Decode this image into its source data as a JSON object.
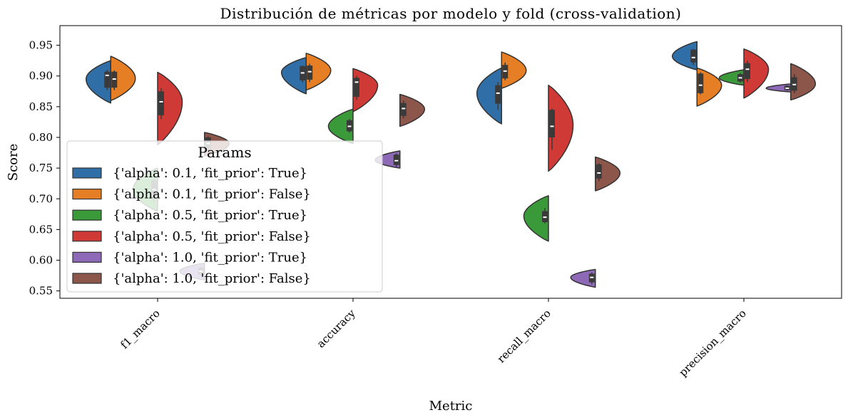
{
  "chart_data": {
    "type": "violin",
    "title": "Distribución de métricas por modelo y fold (cross-validation)",
    "xlabel": "Metric",
    "ylabel": "Score",
    "ylim": [
      0.538,
      0.982
    ],
    "yticks": [
      0.55,
      0.6,
      0.65,
      0.7,
      0.75,
      0.8,
      0.85,
      0.9,
      0.95
    ],
    "categories": [
      "f1_macro",
      "accuracy",
      "recall_macro",
      "precision_macro"
    ],
    "legend": {
      "title": "Params",
      "placement": "center-left"
    },
    "series": [
      {
        "name": "{'alpha': 0.1, 'fit_prior': True}",
        "color": "#2f6ea6",
        "split": "left",
        "group": 0,
        "stats": [
          {
            "min": 0.856,
            "max": 0.925,
            "q1": 0.881,
            "q3": 0.907,
            "median": 0.901,
            "w_lo": 0.877,
            "w_hi": 0.91,
            "peak": 0.895
          },
          {
            "min": 0.871,
            "max": 0.93,
            "q1": 0.893,
            "q3": 0.916,
            "median": 0.905,
            "w_lo": 0.89,
            "w_hi": 0.917,
            "peak": 0.906
          },
          {
            "min": 0.822,
            "max": 0.913,
            "q1": 0.855,
            "q3": 0.885,
            "median": 0.872,
            "w_lo": 0.845,
            "w_hi": 0.89,
            "peak": 0.872
          },
          {
            "min": 0.91,
            "max": 0.956,
            "q1": 0.922,
            "q3": 0.943,
            "median": 0.93,
            "w_lo": 0.918,
            "w_hi": 0.944,
            "peak": 0.932
          }
        ]
      },
      {
        "name": "{'alpha': 0.1, 'fit_prior': False}",
        "color": "#e57e24",
        "split": "right",
        "group": 0,
        "stats": [
          {
            "min": 0.86,
            "max": 0.932,
            "q1": 0.881,
            "q3": 0.907,
            "median": 0.895,
            "w_lo": 0.877,
            "w_hi": 0.909,
            "peak": 0.896
          },
          {
            "min": 0.877,
            "max": 0.937,
            "q1": 0.894,
            "q3": 0.917,
            "median": 0.907,
            "w_lo": 0.89,
            "w_hi": 0.92,
            "peak": 0.909
          },
          {
            "min": 0.88,
            "max": 0.939,
            "q1": 0.896,
            "q3": 0.918,
            "median": 0.908,
            "w_lo": 0.893,
            "w_hi": 0.922,
            "peak": 0.909
          },
          {
            "min": 0.851,
            "max": 0.913,
            "q1": 0.872,
            "q3": 0.904,
            "median": 0.885,
            "w_lo": 0.87,
            "w_hi": 0.906,
            "peak": 0.885
          }
        ]
      },
      {
        "name": "{'alpha': 0.5, 'fit_prior': True}",
        "color": "#3a9a3a",
        "split": "left",
        "group": 1,
        "stats": [
          {
            "min": 0.68,
            "max": 0.75,
            "q1": 0.7,
            "q3": 0.73,
            "median": 0.715,
            "w_lo": 0.695,
            "w_hi": 0.735,
            "peak": 0.715
          },
          {
            "min": 0.79,
            "max": 0.846,
            "q1": 0.81,
            "q3": 0.828,
            "median": 0.818,
            "w_lo": 0.808,
            "w_hi": 0.83,
            "peak": 0.818
          },
          {
            "min": 0.631,
            "max": 0.705,
            "q1": 0.662,
            "q3": 0.68,
            "median": 0.67,
            "w_lo": 0.66,
            "w_hi": 0.685,
            "peak": 0.672
          },
          {
            "min": 0.885,
            "max": 0.91,
            "q1": 0.891,
            "q3": 0.903,
            "median": 0.897,
            "w_lo": 0.889,
            "w_hi": 0.905,
            "peak": 0.897
          }
        ]
      },
      {
        "name": "{'alpha': 0.5, 'fit_prior': False}",
        "color": "#d03a36",
        "split": "right",
        "group": 1,
        "stats": [
          {
            "min": 0.788,
            "max": 0.906,
            "q1": 0.836,
            "q3": 0.875,
            "median": 0.858,
            "w_lo": 0.83,
            "w_hi": 0.88,
            "peak": 0.858
          },
          {
            "min": 0.842,
            "max": 0.912,
            "q1": 0.866,
            "q3": 0.897,
            "median": 0.89,
            "w_lo": 0.861,
            "w_hi": 0.9,
            "peak": 0.885
          },
          {
            "min": 0.745,
            "max": 0.885,
            "q1": 0.8,
            "q3": 0.845,
            "median": 0.818,
            "w_lo": 0.78,
            "w_hi": 0.847,
            "peak": 0.82
          },
          {
            "min": 0.864,
            "max": 0.944,
            "q1": 0.895,
            "q3": 0.921,
            "median": 0.911,
            "w_lo": 0.89,
            "w_hi": 0.925,
            "peak": 0.911
          }
        ]
      },
      {
        "name": "{'alpha': 1.0, 'fit_prior': True}",
        "color": "#8d69b8",
        "split": "left",
        "group": 2,
        "stats": [
          {
            "min": 0.568,
            "max": 0.595,
            "q1": 0.576,
            "q3": 0.588,
            "median": 0.582,
            "w_lo": 0.574,
            "w_hi": 0.59,
            "peak": 0.582
          },
          {
            "min": 0.75,
            "max": 0.778,
            "q1": 0.755,
            "q3": 0.772,
            "median": 0.762,
            "w_lo": 0.752,
            "w_hi": 0.774,
            "peak": 0.763
          },
          {
            "min": 0.556,
            "max": 0.585,
            "q1": 0.564,
            "q3": 0.578,
            "median": 0.572,
            "w_lo": 0.561,
            "w_hi": 0.58,
            "peak": 0.572
          },
          {
            "min": 0.874,
            "max": 0.887,
            "q1": 0.877,
            "q3": 0.884,
            "median": 0.88,
            "w_lo": 0.876,
            "w_hi": 0.885,
            "peak": 0.88
          }
        ]
      },
      {
        "name": "{'alpha': 1.0, 'fit_prior': False}",
        "color": "#8c564b",
        "split": "right",
        "group": 2,
        "stats": [
          {
            "min": 0.77,
            "max": 0.808,
            "q1": 0.782,
            "q3": 0.8,
            "median": 0.79,
            "w_lo": 0.778,
            "w_hi": 0.802,
            "peak": 0.79
          },
          {
            "min": 0.818,
            "max": 0.87,
            "q1": 0.835,
            "q3": 0.856,
            "median": 0.847,
            "w_lo": 0.831,
            "w_hi": 0.86,
            "peak": 0.846
          },
          {
            "min": 0.713,
            "max": 0.768,
            "q1": 0.733,
            "q3": 0.756,
            "median": 0.742,
            "w_lo": 0.729,
            "w_hi": 0.758,
            "peak": 0.742
          },
          {
            "min": 0.861,
            "max": 0.92,
            "q1": 0.876,
            "q3": 0.898,
            "median": 0.886,
            "w_lo": 0.872,
            "w_hi": 0.903,
            "peak": 0.887
          }
        ]
      }
    ]
  }
}
